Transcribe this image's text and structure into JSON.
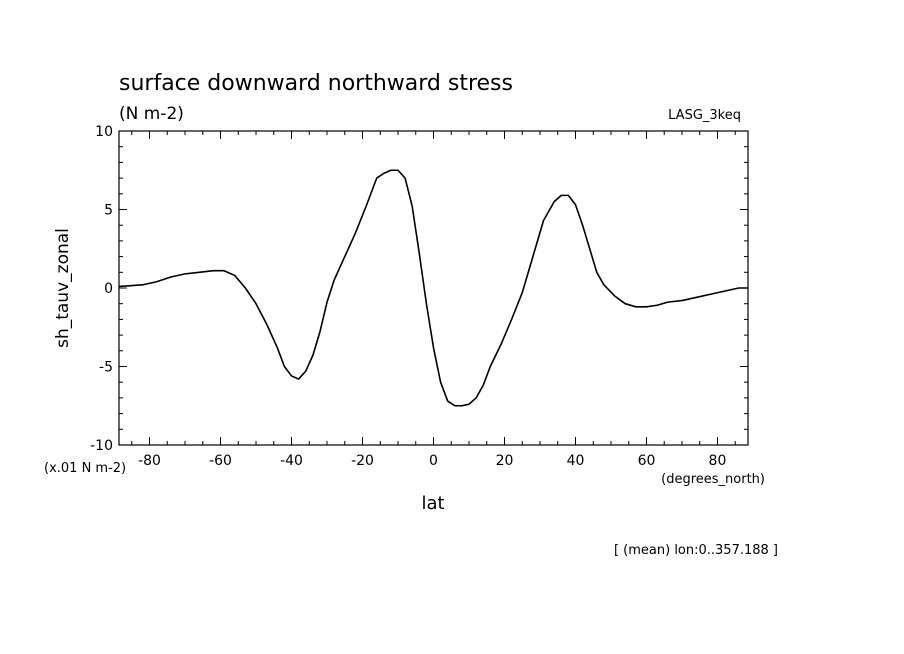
{
  "chart_data": {
    "type": "line",
    "title": "surface downward northward stress",
    "subtitle": "(N m-2)",
    "source_label": "LASG_3keq",
    "ylabel": "sh_tauv_zonal",
    "xlabel": "lat",
    "x_units": "(degrees_north)",
    "y_scale_note": "(x.01 N m-2)",
    "footnote": "[ (mean) lon:0..357.188 ]",
    "xlim": [
      -88.6,
      88.6
    ],
    "ylim": [
      -10,
      10
    ],
    "x_ticks": [
      -80,
      -60,
      -40,
      -20,
      0,
      20,
      40,
      60,
      80
    ],
    "x_tick_labels": [
      "-80",
      "-60",
      "-40",
      "-20",
      "0",
      "20",
      "40",
      "60",
      "80"
    ],
    "y_ticks": [
      -10,
      -5,
      0,
      5,
      10
    ],
    "y_tick_labels": [
      "-10",
      "-5",
      "0",
      "5",
      "10"
    ],
    "grid": false,
    "series": [
      {
        "color": "#000000",
        "x": [
          -88.6,
          -82,
          -78,
          -74,
          -70,
          -66,
          -62,
          -59,
          -56,
          -53,
          -50,
          -47,
          -44,
          -42,
          -40,
          -38,
          -36,
          -34,
          -32,
          -30,
          -28,
          -25,
          -22,
          -19,
          -16,
          -14,
          -12,
          -10,
          -8,
          -6,
          -4,
          -2,
          0,
          2,
          4,
          6,
          8,
          10,
          12,
          14,
          16,
          19,
          22,
          25,
          28,
          31,
          34,
          36,
          38,
          40,
          42,
          44,
          46,
          48,
          51,
          54,
          57,
          60,
          63,
          66,
          70,
          74,
          78,
          82,
          86,
          88.6
        ],
        "y": [
          0.1,
          0.2,
          0.4,
          0.7,
          0.9,
          1.0,
          1.1,
          1.1,
          0.8,
          0.0,
          -1.0,
          -2.3,
          -3.8,
          -5.0,
          -5.6,
          -5.8,
          -5.3,
          -4.3,
          -2.8,
          -0.9,
          0.5,
          2.0,
          3.5,
          5.2,
          7.0,
          7.3,
          7.5,
          7.5,
          7.0,
          5.2,
          2.2,
          -1.0,
          -3.8,
          -6.0,
          -7.2,
          -7.5,
          -7.5,
          -7.4,
          -7.0,
          -6.2,
          -5.0,
          -3.6,
          -2.0,
          -0.3,
          2.0,
          4.3,
          5.5,
          5.9,
          5.9,
          5.3,
          4.0,
          2.5,
          1.0,
          0.2,
          -0.5,
          -1.0,
          -1.2,
          -1.2,
          -1.1,
          -0.9,
          -0.8,
          -0.6,
          -0.4,
          -0.2,
          0.0,
          0.0
        ]
      }
    ]
  }
}
